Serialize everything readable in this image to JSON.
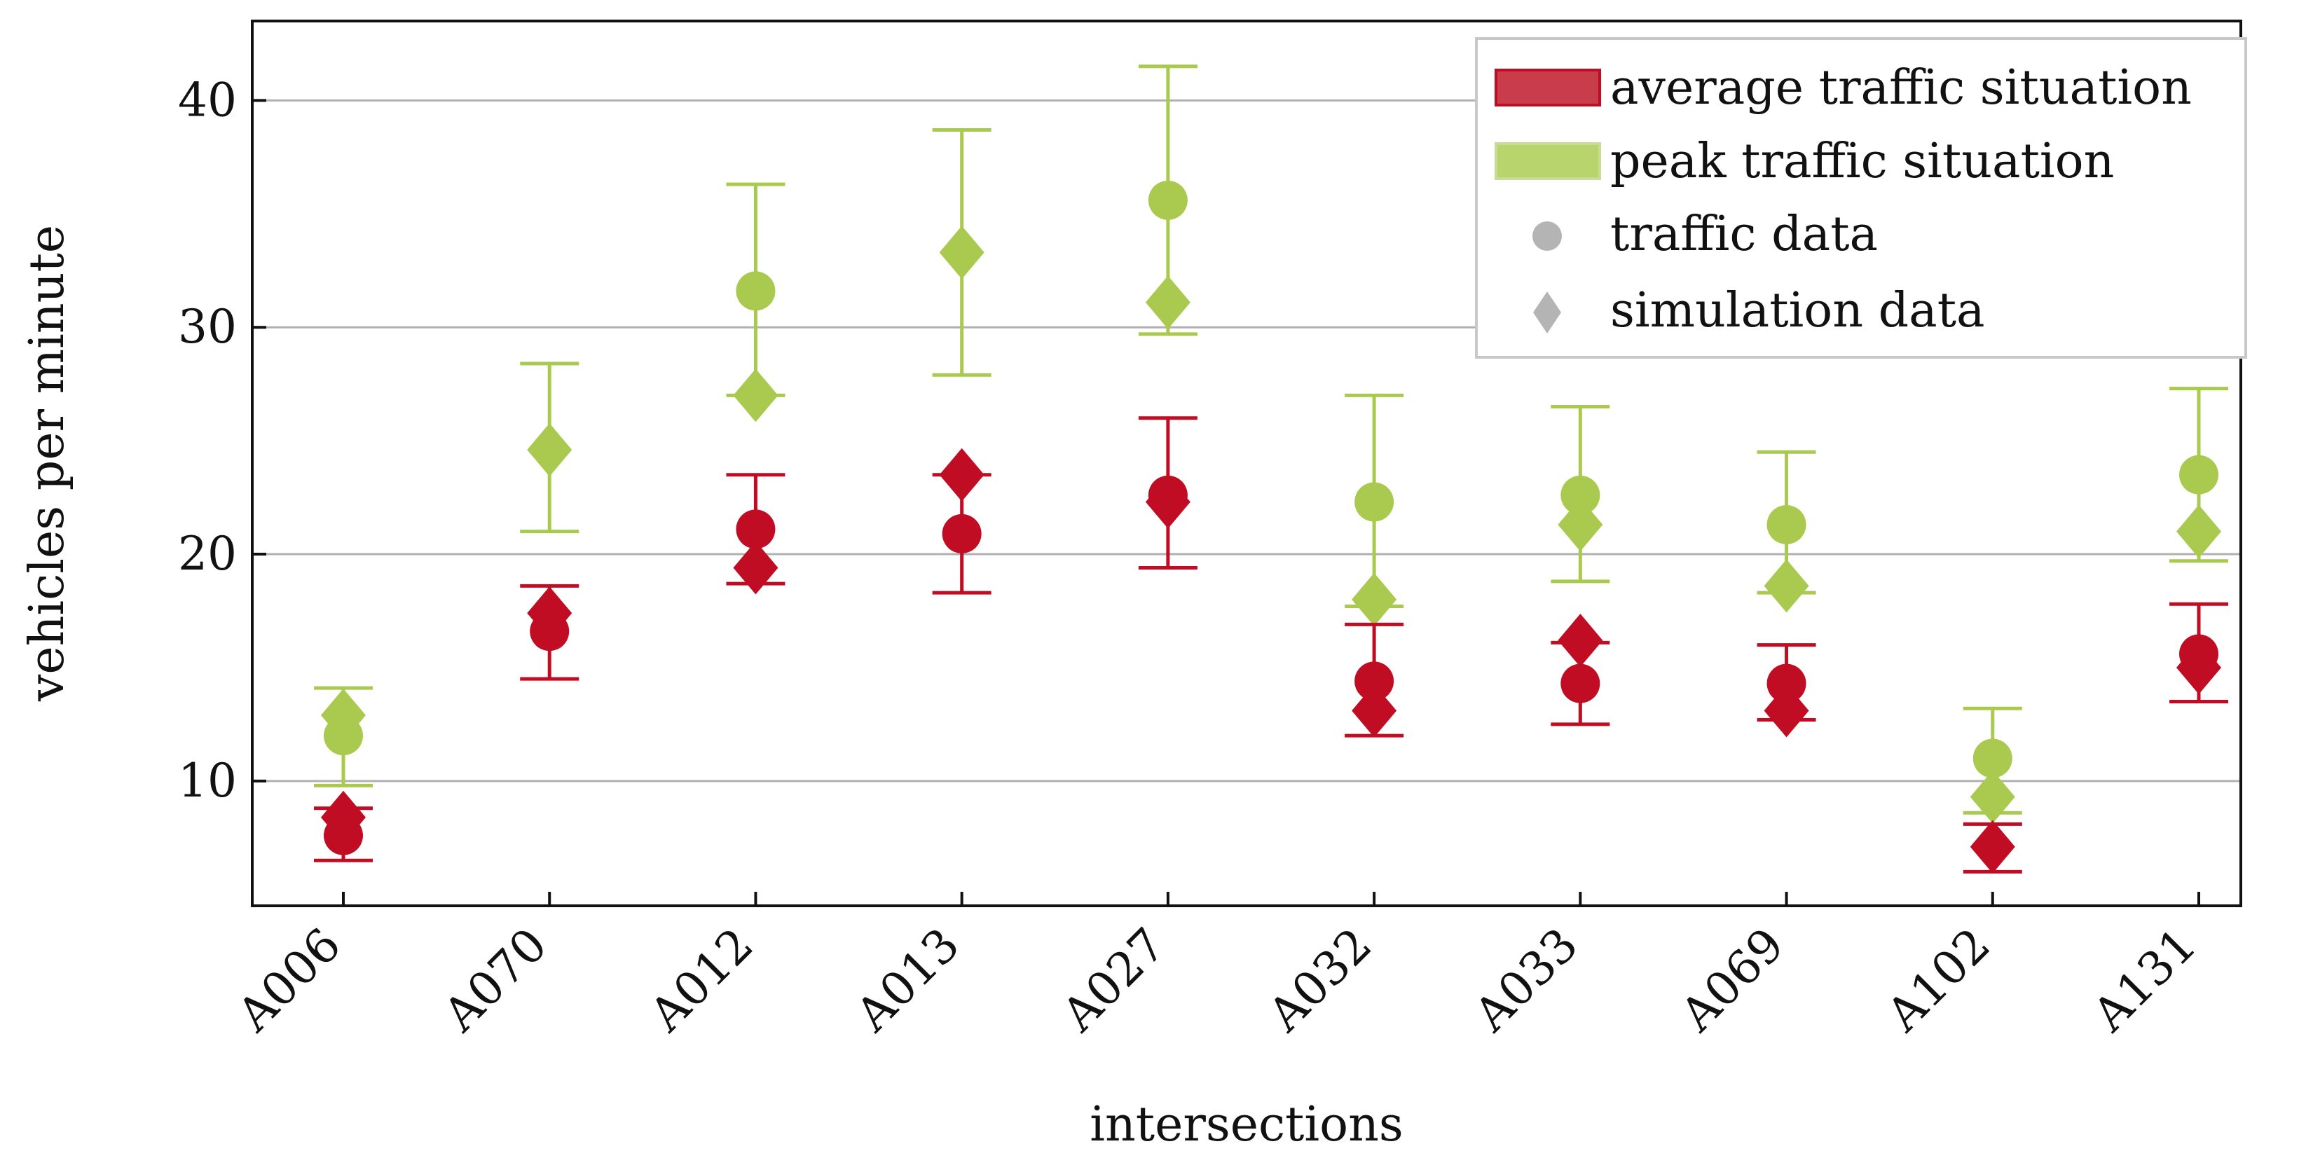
{
  "chart_data": {
    "type": "scatter",
    "title": "",
    "xlabel": "intersections",
    "ylabel": "vehicles per minute",
    "ylim": [
      4.5,
      43.5
    ],
    "yticks": [
      10,
      20,
      30,
      40
    ],
    "grid": "horizontal",
    "legend_position": "top-right",
    "categories": [
      "A006",
      "A070",
      "A012",
      "A013",
      "A027",
      "A032",
      "A033",
      "A069",
      "A102",
      "A131"
    ],
    "colors": {
      "average": "#c00d23",
      "peak": "#a9c94f",
      "legend_marker": "#b4b4b4"
    },
    "legend": {
      "average_label": "average traffic situation",
      "peak_label": "peak traffic situation",
      "traffic_label": "traffic data",
      "simulation_label": "simulation data"
    },
    "series": [
      {
        "name": "average traffic situation",
        "color_key": "average",
        "traffic": [
          7.6,
          16.6,
          21.1,
          20.9,
          22.6,
          14.4,
          14.3,
          14.3,
          null,
          15.6
        ],
        "simulation": [
          8.4,
          17.4,
          19.4,
          23.5,
          22.3,
          13.1,
          16.2,
          13.1,
          7.1,
          15.0
        ],
        "err_low": [
          6.5,
          14.5,
          18.7,
          18.3,
          19.4,
          12.0,
          12.5,
          12.7,
          6.0,
          13.5
        ],
        "err_high": [
          8.8,
          18.6,
          23.5,
          23.5,
          26.0,
          16.9,
          16.1,
          16.0,
          8.1,
          17.8
        ]
      },
      {
        "name": "peak traffic situation",
        "color_key": "peak",
        "traffic": [
          12.0,
          null,
          31.6,
          null,
          35.6,
          22.3,
          22.6,
          21.3,
          11.0,
          23.5
        ],
        "simulation": [
          12.9,
          24.6,
          27.0,
          33.3,
          31.1,
          18.0,
          21.3,
          18.6,
          9.3,
          21.0
        ],
        "err_low": [
          9.8,
          21.0,
          27.0,
          27.9,
          29.7,
          17.7,
          18.8,
          18.3,
          8.6,
          19.7
        ],
        "err_high": [
          14.1,
          28.4,
          36.3,
          38.7,
          41.5,
          27.0,
          26.5,
          24.5,
          13.2,
          27.3
        ]
      }
    ]
  }
}
